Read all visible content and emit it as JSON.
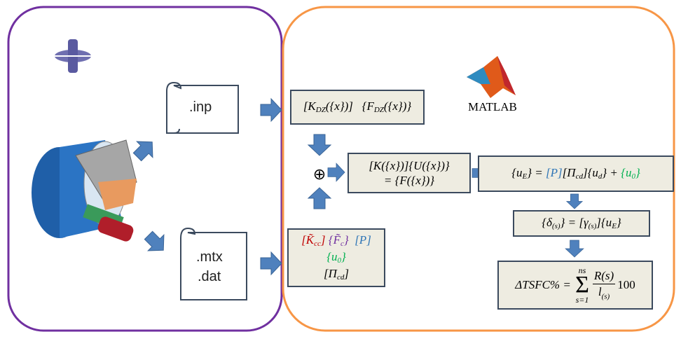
{
  "files": {
    "inp": ".inp",
    "mtx": ".mtx",
    "dat": ".dat"
  },
  "matlab": "MATLAB",
  "oplus": "⊕",
  "equations": {
    "dz": [
      [
        {
          "text": "[K",
          "sub": "DZ"
        },
        {
          "text": "({x})]   {F",
          "sub": "DZ"
        },
        {
          "text": "({x})}"
        }
      ]
    ],
    "system": [
      [
        {
          "text": "[K({x})]{U({x})}"
        }
      ],
      [
        {
          "text": "= {F({x})}"
        }
      ]
    ],
    "ue": [
      [
        {
          "text": "{u",
          "sub": "E"
        },
        {
          "text": "} = "
        },
        {
          "text": "[P]",
          "color": "#2e75b6"
        },
        {
          "text": "[Π",
          "sub": "cd"
        },
        {
          "text": "]{u",
          "sub": "d"
        },
        {
          "text": "} + "
        },
        {
          "text": "{u",
          "sub": "0",
          "color": "#00b050"
        },
        {
          "text": "}",
          "color": "#00b050"
        }
      ]
    ],
    "delta": [
      [
        {
          "text": "{δ",
          "sub": "(s)"
        },
        {
          "text": "} = [γ",
          "sub": "(s)"
        },
        {
          "text": "]{u",
          "sub": "E"
        },
        {
          "text": "}"
        }
      ]
    ],
    "inputs": [
      [
        {
          "text": "[K̃",
          "sub": "cc",
          "color": "#c00000"
        },
        {
          "text": "]",
          "color": "#c00000"
        },
        {
          "text": " {F̃",
          "sub": "c",
          "color": "#7030a0"
        },
        {
          "text": "}",
          "color": "#7030a0"
        },
        {
          "text": "  [P]",
          "color": "#2e75b6"
        }
      ],
      [
        {
          "text": "{u",
          "sub": "0",
          "color": "#00b050"
        },
        {
          "text": "}",
          "color": "#00b050"
        }
      ],
      [
        {
          "text": "[Π",
          "sub": "cd"
        },
        {
          "text": "]"
        }
      ]
    ]
  },
  "tsfc": {
    "lhs": "ΔTSFC% = ",
    "upper": "ns",
    "lower": "s=1",
    "numerator": "R(s)",
    "denominator": "l",
    "denominator_sub": "(s)",
    "factor": "100"
  }
}
